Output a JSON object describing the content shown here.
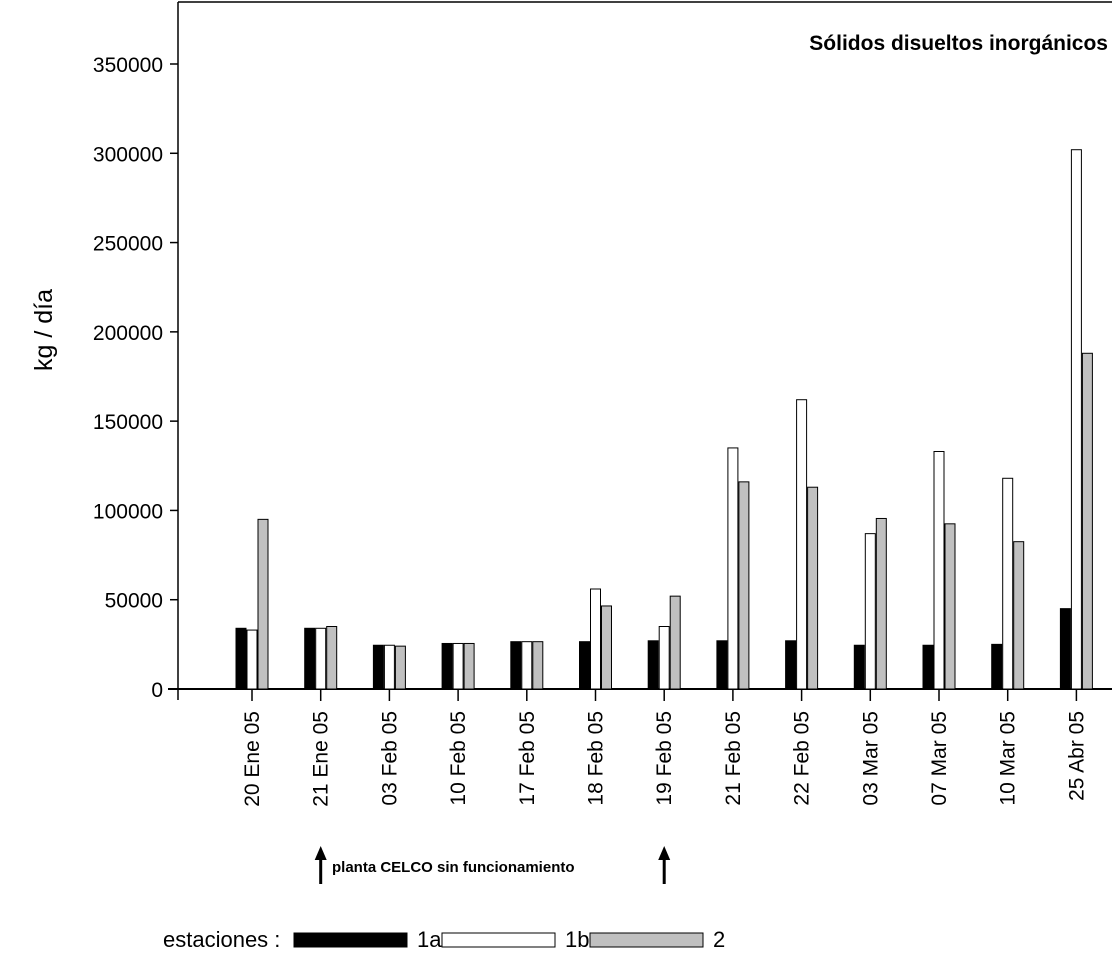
{
  "chart_data": {
    "type": "bar",
    "title": "Sólidos disueltos inorgánicos",
    "ylabel": "kg / día",
    "xlabel": "",
    "ylim": [
      0,
      380000
    ],
    "yticks": [
      0,
      50000,
      100000,
      150000,
      200000,
      250000,
      300000,
      350000
    ],
    "ytick_labels": [
      "0",
      "50000",
      "100000",
      "150000",
      "200000",
      "250000",
      "300000",
      "350000"
    ],
    "categories": [
      "20 Ene 05",
      "21 Ene 05",
      "03 Feb 05",
      "10 Feb 05",
      "17 Feb 05",
      "18 Feb 05",
      "19 Feb 05",
      "21 Feb 05",
      "22 Feb 05",
      "03 Mar 05",
      "07 Mar 05",
      "10 Mar 05",
      "25 Abr 05"
    ],
    "series": [
      {
        "name": "1a",
        "color": "#000000",
        "values": [
          34000,
          34000,
          24500,
          25500,
          26500,
          26500,
          27000,
          27000,
          27000,
          24500,
          24500,
          25000,
          45000
        ]
      },
      {
        "name": "1b",
        "color": "#ffffff",
        "values": [
          33000,
          34000,
          24500,
          25500,
          26500,
          56000,
          35000,
          135000,
          162000,
          87000,
          133000,
          118000,
          302000
        ]
      },
      {
        "name": "2",
        "color": "#c0c0c0",
        "values": [
          95000,
          35000,
          24000,
          25500,
          26500,
          46500,
          52000,
          116000,
          113000,
          95500,
          92500,
          82500,
          188000
        ]
      }
    ],
    "legend": {
      "title": "estaciones :",
      "position": "bottom-left"
    },
    "annotation": {
      "text": "planta CELCO sin funcionamiento",
      "from_category": "21 Ene 05",
      "to_category": "19 Feb 05"
    },
    "grid": false
  }
}
